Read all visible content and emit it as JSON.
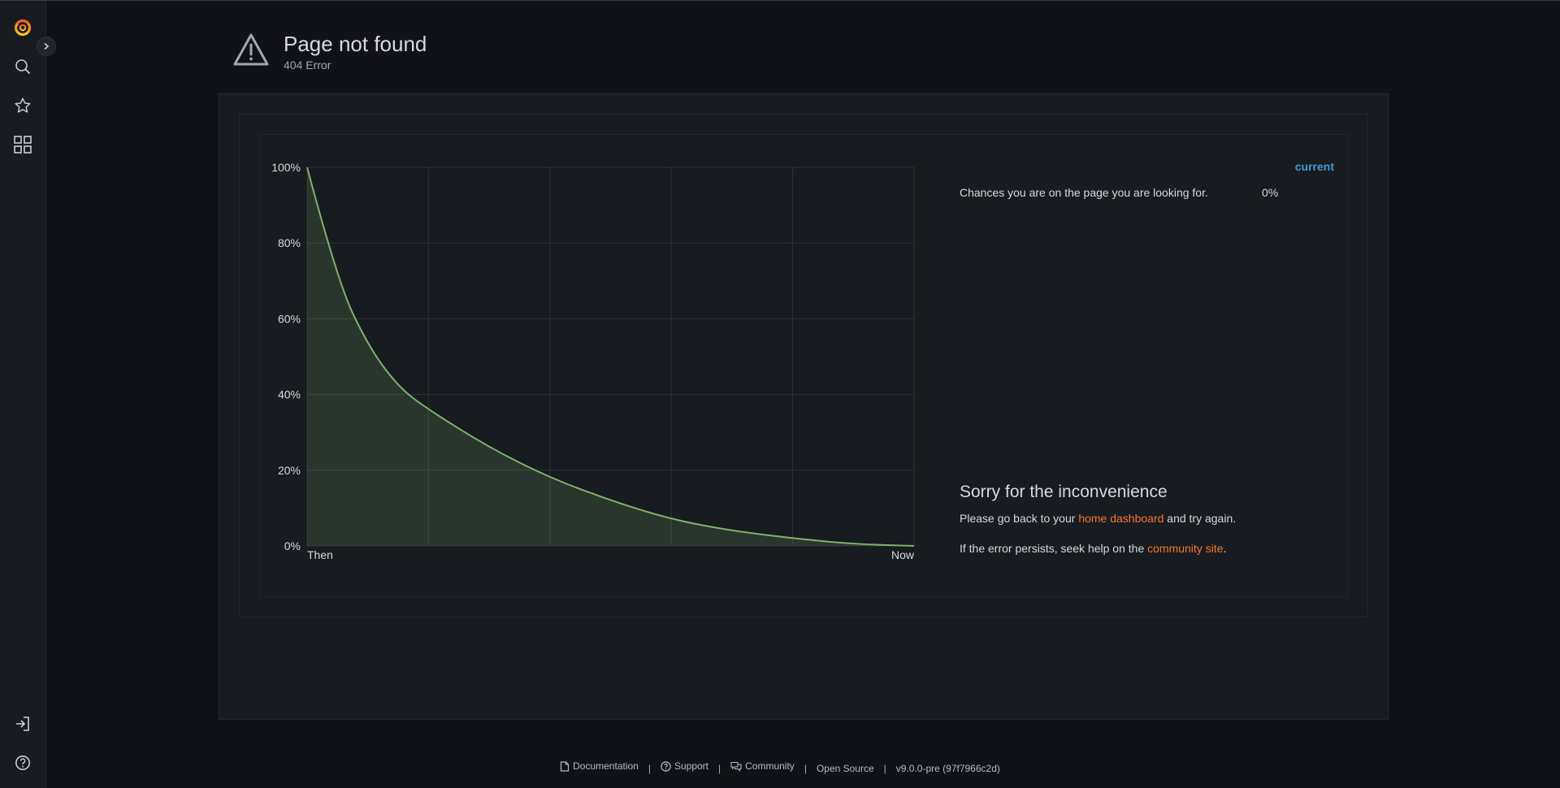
{
  "header": {
    "title": "Page not found",
    "subtitle": "404 Error"
  },
  "sidebar": {
    "icons": [
      "grafana-logo",
      "chevron-right-icon",
      "search-icon",
      "star-icon",
      "apps-icon",
      "sign-in-icon",
      "help-icon"
    ]
  },
  "legend": {
    "header": "current",
    "series_label": "Chances you are on the page you are looking for.",
    "series_value": "0%"
  },
  "message": {
    "title": "Sorry for the inconvenience",
    "line1_pre": "Please go back to your ",
    "line1_link": "home dashboard",
    "line1_post": " and try again.",
    "line2_pre": "If the error persists, seek help on the ",
    "line2_link": "community site",
    "line2_post": "."
  },
  "footer": {
    "documentation": "Documentation",
    "support": "Support",
    "community": "Community",
    "open_source": "Open Source",
    "version": "v9.0.0-pre (97f7966c2d)"
  },
  "colors": {
    "background": "#111217",
    "panel": "#181b1f",
    "series": "#7eb26d",
    "link": "#f2772e",
    "legend_header": "#3d9bd8"
  },
  "chart_data": {
    "type": "area",
    "y_tick_labels": [
      "100%",
      "80%",
      "60%",
      "40%",
      "20%",
      "0%"
    ],
    "x_tick_labels": [
      "Then",
      "Now"
    ],
    "ylim": [
      0,
      100
    ],
    "xlim": [
      0,
      5
    ],
    "x_unit_note_removed": true,
    "series": [
      {
        "name": "Chances you are on the page you are looking for.",
        "x": [
          0,
          0.25,
          0.5,
          0.75,
          1,
          1.5,
          2,
          2.5,
          3,
          3.5,
          4,
          4.5,
          5
        ],
        "values": [
          100,
          70,
          53,
          42,
          36,
          26,
          18,
          12,
          7,
          4,
          2,
          0.5,
          0
        ]
      }
    ],
    "grid": true
  }
}
